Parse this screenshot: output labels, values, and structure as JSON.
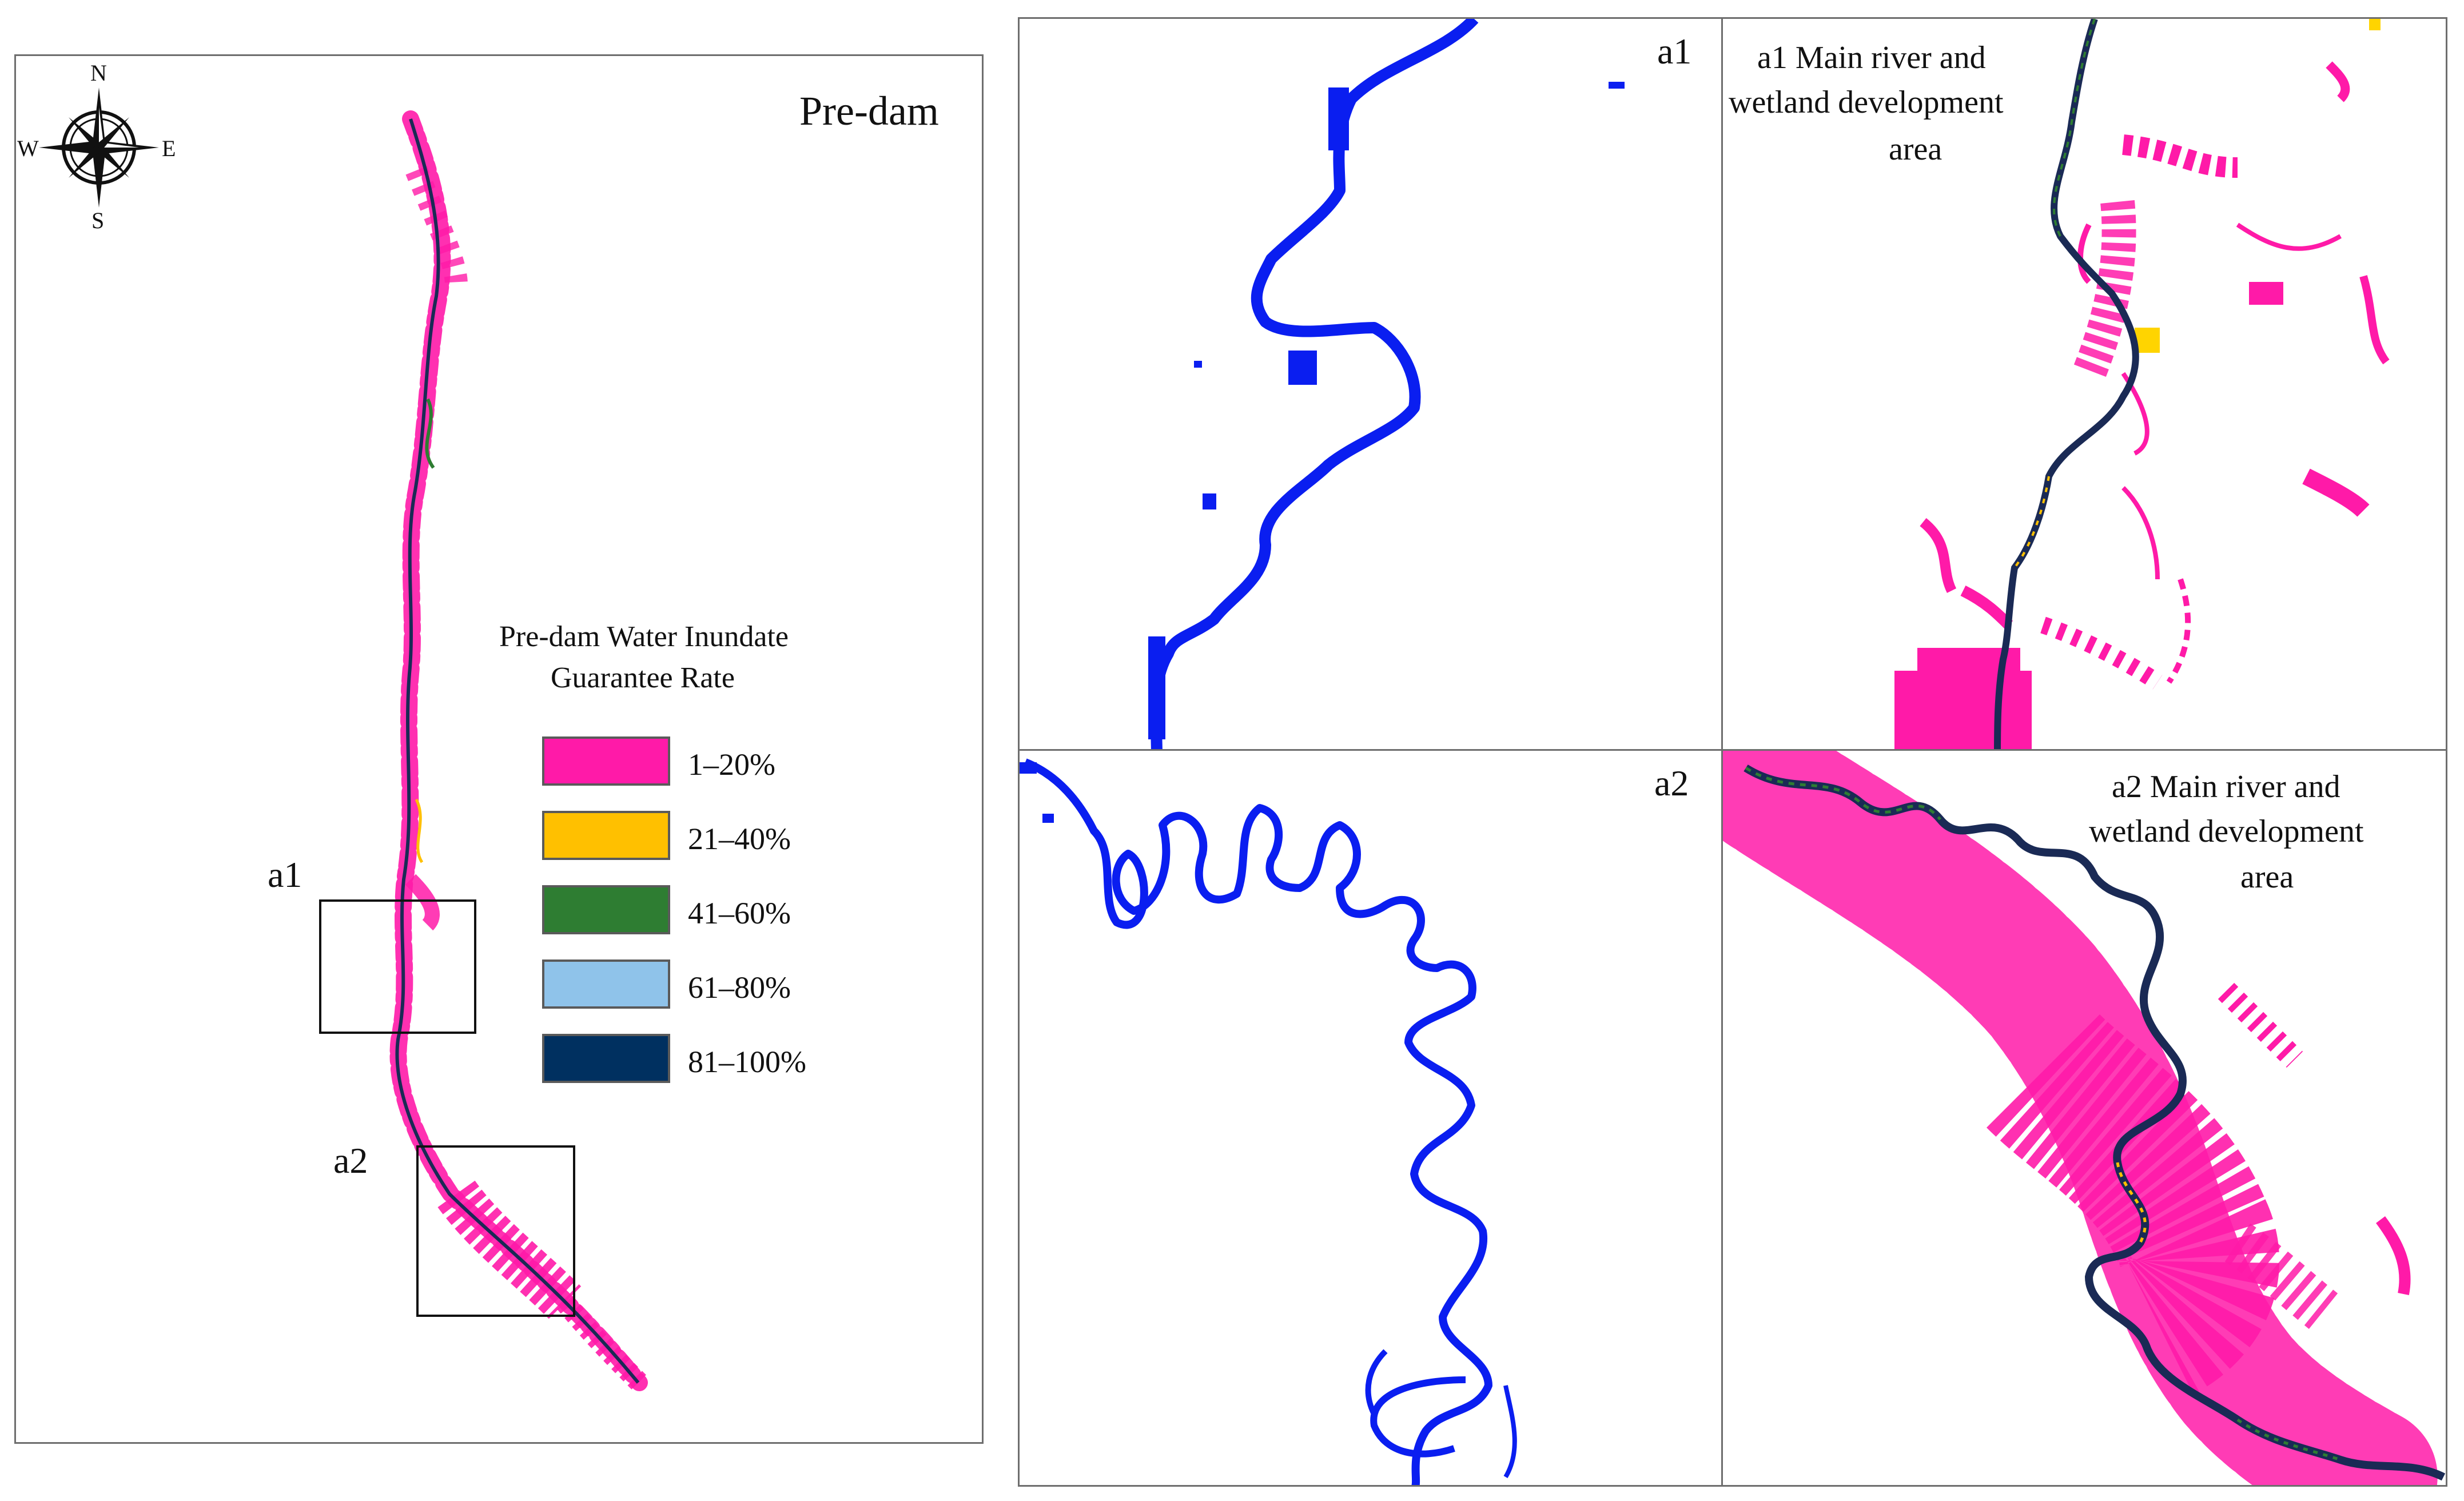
{
  "main_map": {
    "title": "Pre-dam",
    "compass": {
      "n": "N",
      "s": "S",
      "e": "E",
      "w": "W"
    },
    "inset_labels": {
      "a1": "a1",
      "a2": "a2"
    }
  },
  "legend": {
    "title_line1": "Pre-dam Water Inundate",
    "title_line2": "Guarantee Rate",
    "items": [
      {
        "label": "1–20%",
        "color": "#ff1aa8"
      },
      {
        "label": "21–40%",
        "color": "#ffc000"
      },
      {
        "label": "41–60%",
        "color": "#2e7d32"
      },
      {
        "label": "61–80%",
        "color": "#8fc3ea"
      },
      {
        "label": "81–100%",
        "color": "#003060"
      }
    ]
  },
  "panels": {
    "a1_left": {
      "label": "a1"
    },
    "a1_right": {
      "label_line1": "a1 Main river and",
      "label_line2": "wetland development",
      "label_line3": "area"
    },
    "a2_left": {
      "label": "a2"
    },
    "a2_right": {
      "label_line1": "a2 Main river and",
      "label_line2": "wetland development",
      "label_line3": "area"
    }
  },
  "colors": {
    "river_blue": "#0a1ef0",
    "wetland_pink": "#ff1aa8",
    "frame_gray": "#6e6e6e"
  }
}
